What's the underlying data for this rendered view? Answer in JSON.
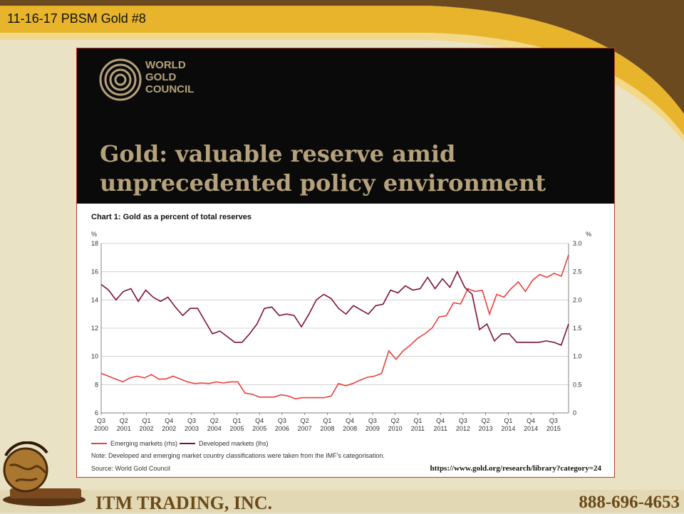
{
  "slide": {
    "title": "11-16-17 PBSM Gold #8"
  },
  "card": {
    "logo_lines": [
      "WORLD",
      "GOLD",
      "COUNCIL"
    ],
    "headline_lines": [
      "Gold: valuable reserve amid",
      "unprecedented policy environment"
    ]
  },
  "chart_data": {
    "type": "line",
    "title": "Chart 1: Gold as a percent of total reserves",
    "y_unit_left": "%",
    "y_unit_right": "%",
    "ylim_left": [
      6,
      18
    ],
    "yticks_left": [
      "6",
      "8",
      "10",
      "12",
      "14",
      "16",
      "18"
    ],
    "ylim_right": [
      0,
      3.0
    ],
    "yticks_right": [
      "0",
      "0.5",
      "1.0",
      "1.5",
      "2.0",
      "2.5",
      "3.0"
    ],
    "xlim": [
      2000.5,
      2016.0
    ],
    "xticks": [
      {
        "q": "Q3",
        "y": "2000"
      },
      {
        "q": "Q2",
        "y": "2001"
      },
      {
        "q": "Q1",
        "y": "2002"
      },
      {
        "q": "Q4",
        "y": "2002"
      },
      {
        "q": "Q3",
        "y": "2003"
      },
      {
        "q": "Q2",
        "y": "2004"
      },
      {
        "q": "Q1",
        "y": "2005"
      },
      {
        "q": "Q4",
        "y": "2005"
      },
      {
        "q": "Q3",
        "y": "2006"
      },
      {
        "q": "Q2",
        "y": "2007"
      },
      {
        "q": "Q1",
        "y": "2008"
      },
      {
        "q": "Q4",
        "y": "2008"
      },
      {
        "q": "Q3",
        "y": "2009"
      },
      {
        "q": "Q2",
        "y": "2010"
      },
      {
        "q": "Q1",
        "y": "2011"
      },
      {
        "q": "Q4",
        "y": "2011"
      },
      {
        "q": "Q3",
        "y": "2012"
      },
      {
        "q": "Q2",
        "y": "2013"
      },
      {
        "q": "Q1",
        "y": "2014"
      },
      {
        "q": "Q4",
        "y": "2014"
      },
      {
        "q": "Q3",
        "y": "2015"
      }
    ],
    "legend_position": "bottom-left",
    "series": [
      {
        "name": "Emerging markets (rhs)",
        "axis": "right",
        "color": "#e8403a",
        "values": [
          0.7,
          0.65,
          0.6,
          0.55,
          0.62,
          0.65,
          0.62,
          0.68,
          0.6,
          0.6,
          0.65,
          0.6,
          0.55,
          0.52,
          0.53,
          0.52,
          0.55,
          0.53,
          0.55,
          0.55,
          0.35,
          0.33,
          0.28,
          0.28,
          0.28,
          0.32,
          0.3,
          0.25,
          0.27,
          0.27,
          0.27,
          0.27,
          0.3,
          0.52,
          0.48,
          0.52,
          0.58,
          0.63,
          0.65,
          0.7,
          1.1,
          0.95,
          1.1,
          1.2,
          1.32,
          1.4,
          1.5,
          1.7,
          1.72,
          1.95,
          1.93,
          2.2,
          2.15,
          2.17,
          1.75,
          2.1,
          2.05,
          2.2,
          2.32,
          2.15,
          2.35,
          2.45,
          2.4,
          2.47,
          2.42,
          2.8
        ]
      },
      {
        "name": "Developed markets (lhs)",
        "axis": "left",
        "color": "#7a1233",
        "values": [
          15.1,
          14.7,
          14.0,
          14.6,
          14.8,
          13.9,
          14.7,
          14.2,
          13.9,
          14.2,
          13.5,
          12.9,
          13.4,
          13.4,
          12.5,
          11.6,
          11.8,
          11.4,
          11.0,
          11.0,
          11.6,
          12.3,
          13.4,
          13.5,
          12.9,
          13.0,
          12.9,
          12.1,
          13.0,
          14.0,
          14.4,
          14.1,
          13.4,
          13.0,
          13.6,
          13.3,
          13.0,
          13.6,
          13.7,
          14.7,
          14.5,
          15.0,
          14.7,
          14.8,
          15.6,
          14.8,
          15.5,
          14.9,
          16.0,
          14.9,
          14.4,
          11.9,
          12.3,
          11.1,
          11.6,
          11.6,
          11.0,
          11.0,
          11.0,
          11.0,
          11.1,
          11.0,
          10.8,
          12.3
        ]
      }
    ],
    "note": "Note: Developed and emerging market country classifications were taken from the IMF's categorisation.",
    "source": "Source: World Gold Council",
    "url": "https://www.gold.org/research/library?category=24"
  },
  "footer": {
    "company": "ITM TRADING, INC.",
    "phone": "888-696-4653"
  },
  "colors": {
    "banner_brown": "#6b4a1f",
    "banner_gold": "#e7b42c",
    "background": "#eae2c4",
    "header_text": "#b5a27a"
  }
}
